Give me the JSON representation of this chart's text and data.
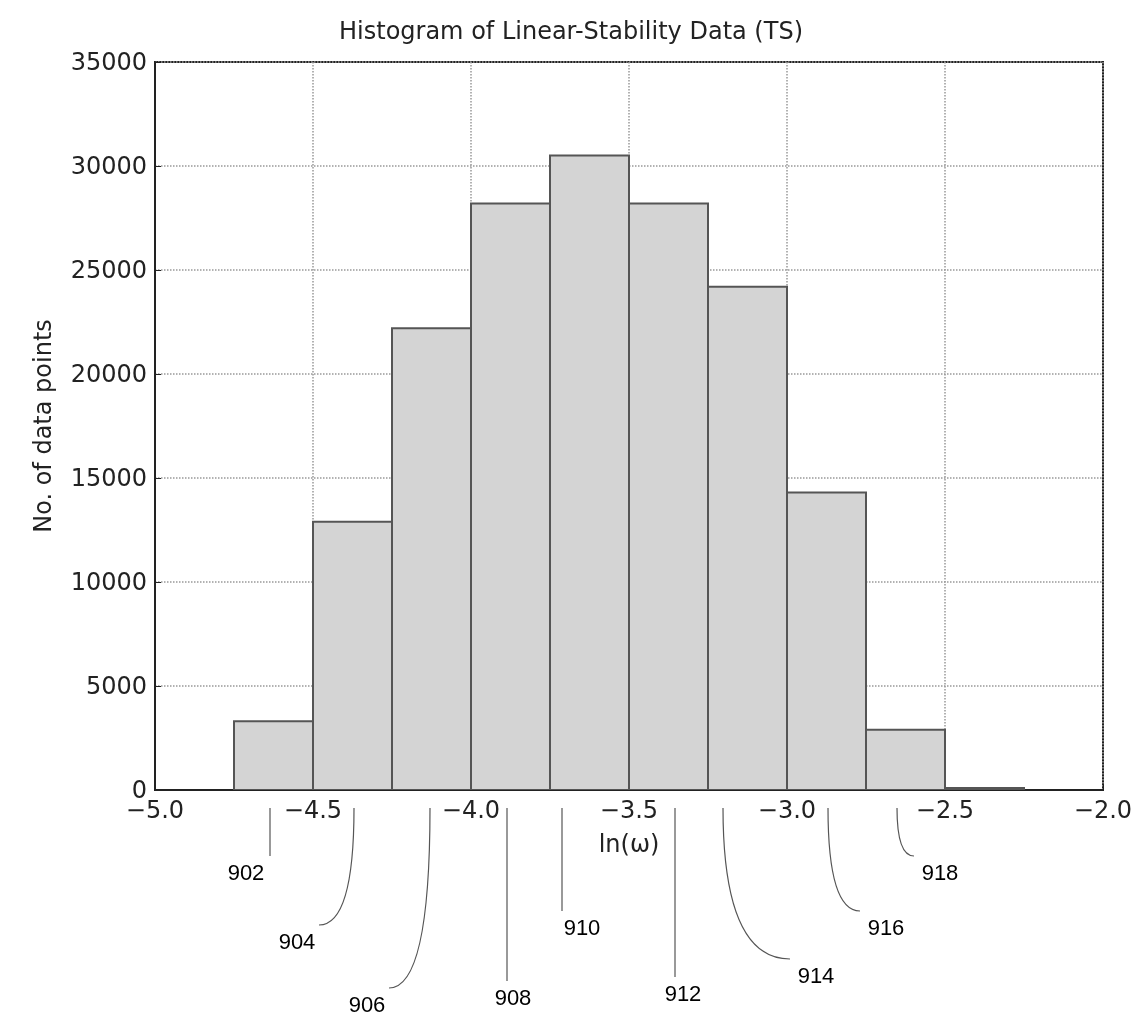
{
  "chart_data": {
    "type": "histogram",
    "title": "Histogram of Linear-Stability Data (TS)",
    "xlabel": "ln(ω)",
    "ylabel": "No. of data points",
    "bins": [
      -4.75,
      -4.5,
      -4.25,
      -4.0,
      -3.75,
      -3.5,
      -3.25,
      -3.0,
      -2.75,
      -2.5,
      -2.25
    ],
    "values": [
      3300,
      12900,
      22200,
      28200,
      30500,
      28200,
      24200,
      14300,
      2900,
      100
    ],
    "color": "#d4d4d4",
    "xlim": [
      -5.0,
      -2.0
    ],
    "xticks": [
      {
        "value": -5.0,
        "label": "−5.0"
      },
      {
        "value": -4.5,
        "label": "−4.5"
      },
      {
        "value": -4.0,
        "label": "−4.0"
      },
      {
        "value": -3.5,
        "label": "−3.5"
      },
      {
        "value": -3.0,
        "label": "−3.0"
      },
      {
        "value": -2.5,
        "label": "−2.5"
      },
      {
        "value": -2.0,
        "label": "−2.0"
      }
    ],
    "ylim": [
      0,
      35000
    ],
    "yticks": [
      0,
      5000,
      10000,
      15000,
      20000,
      25000,
      30000,
      35000
    ],
    "grid": true,
    "annotations": [
      "902",
      "904",
      "906",
      "908",
      "910",
      "912",
      "914",
      "916",
      "918"
    ]
  }
}
